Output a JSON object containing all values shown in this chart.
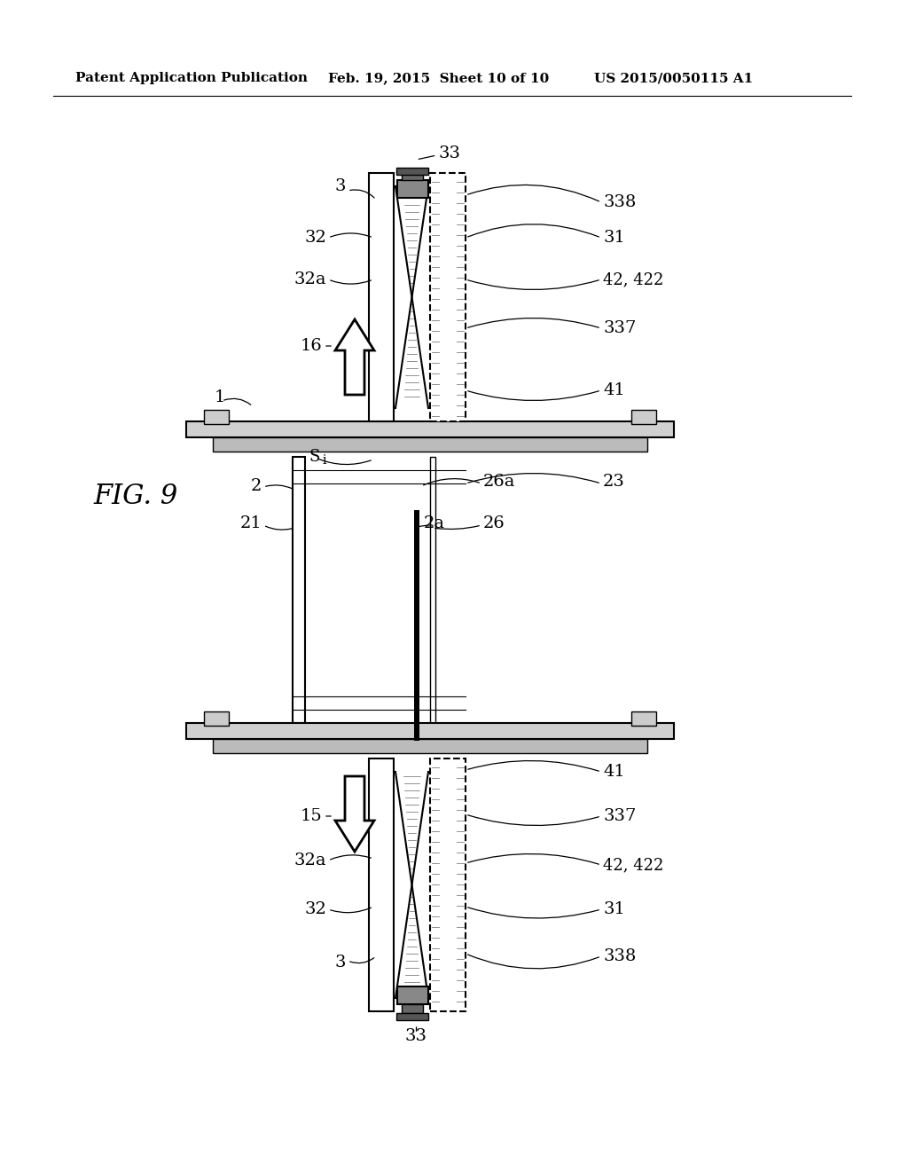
{
  "bg_color": "#ffffff",
  "header_left": "Patent Application Publication",
  "header_mid": "Feb. 19, 2015  Sheet 10 of 10",
  "header_right": "US 2015/0050115 A1",
  "fig_label": "FIG. 9"
}
